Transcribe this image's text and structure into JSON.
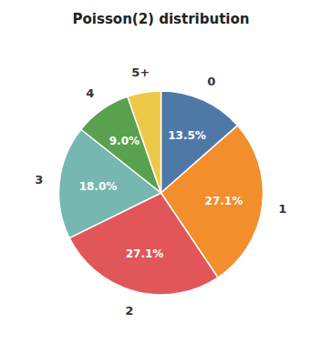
{
  "chart_data": {
    "type": "pie",
    "title": "Poisson(2) distribution",
    "categories": [
      "0",
      "1",
      "2",
      "3",
      "4",
      "5+"
    ],
    "values": [
      13.5,
      27.1,
      27.1,
      18.0,
      9.0,
      5.3
    ],
    "value_labels": [
      "13.5%",
      "27.1%",
      "27.1%",
      "18.0%",
      "9.0%",
      null
    ],
    "data_labels": true
  }
}
